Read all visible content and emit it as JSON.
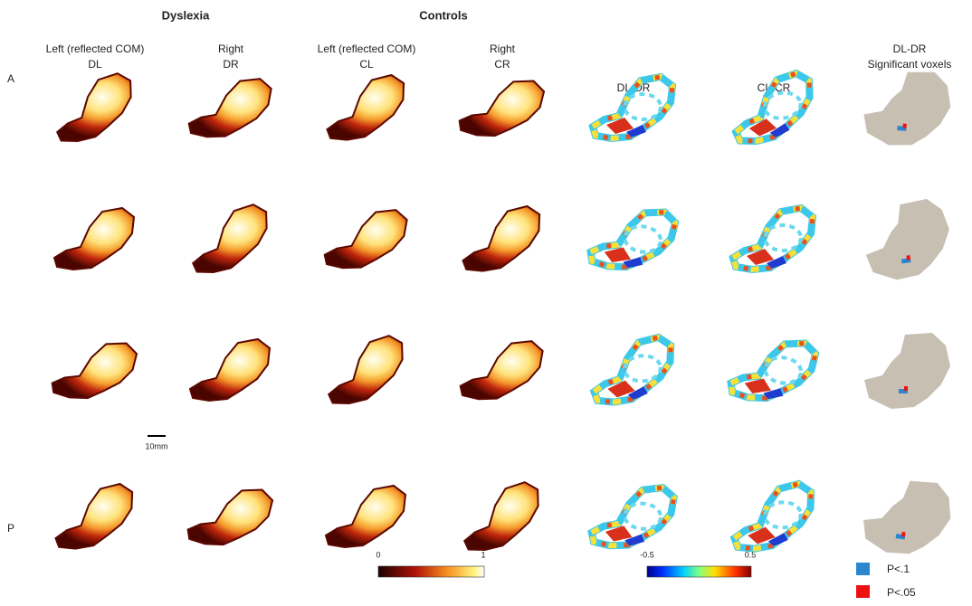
{
  "groups": [
    "Dyslexia",
    "Controls"
  ],
  "columns": [
    {
      "line1": "Left (reflected COM)",
      "line2": "DL"
    },
    {
      "line1": "Right",
      "line2": "DR"
    },
    {
      "line1": "Left (reflected COM)",
      "line2": "CL"
    },
    {
      "line1": "Right",
      "line2": "CR"
    },
    {
      "line2": "DL-DR"
    },
    {
      "line2": "CL-CR"
    },
    {
      "line1": "DL-DR",
      "line2": "Significant voxels"
    }
  ],
  "row_labels": {
    "top": "A",
    "bottom": "P"
  },
  "scale_bar": "10mm",
  "heat_colorbar": {
    "min": "0",
    "max": "1"
  },
  "diff_colorbar": {
    "min": "-0.5",
    "max": "0.5"
  },
  "legend": [
    "P<.1",
    "P<.05"
  ]
}
